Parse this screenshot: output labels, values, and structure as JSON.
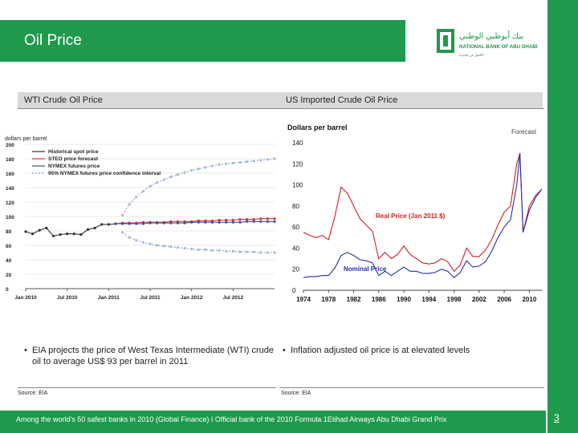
{
  "header": {
    "title": "Oil Price"
  },
  "logo": {
    "arabic": "بنك أبوظبي الوطني",
    "name": "NATIONAL BANK OF ABU DHABI",
    "tagline": "الأفضل في الخدمة"
  },
  "left_panel": {
    "title": "WTI Crude Oil Price",
    "bullet": "EIA projects the price of West Texas Intermediate (WTI) crude oil to average US$ 93 per barrel in 2011",
    "source": "Source: EIA"
  },
  "right_panel": {
    "title": "US Imported Crude Oil Price",
    "bullet": "Inflation adjusted oil price is at elevated levels",
    "source": "Source: EIA"
  },
  "footer": {
    "text": "Among the world's 50 safest banks in 2010 (Global Finance) I Official bank of the 2010 Formula 1Etihad Airways Abu Dhabi Grand Prix",
    "page": "3"
  },
  "colors": {
    "brand_green": "#1f9a4c",
    "historical": "#333333",
    "steo": "#e03030",
    "nymex": "#3a4fa8",
    "ci": "#8aa0cc"
  },
  "chart_data": [
    {
      "type": "line",
      "title": "WTI Crude Oil Price",
      "ylabel": "dollars per barrel",
      "categories": [
        "Jan 2010",
        "Jul 2010",
        "Jan 2011",
        "Jul 2011",
        "Jan 2012",
        "Jul 2012"
      ],
      "ylim": [
        0,
        200
      ],
      "yticks": [
        0,
        20,
        40,
        60,
        80,
        100,
        120,
        140,
        160,
        180,
        200
      ],
      "legend": [
        "Historical spot price",
        "STEO price forecast",
        "NYMEX futures price",
        "95% NYMEX futures price confidence interval"
      ],
      "series": [
        {
          "name": "Historical spot price",
          "x": [
            0,
            1,
            2,
            3,
            4,
            5,
            6,
            7,
            8,
            9,
            10,
            11,
            12,
            13
          ],
          "values": [
            79,
            76,
            81,
            84,
            73,
            75,
            76,
            76,
            75,
            82,
            84,
            89,
            89,
            90
          ]
        },
        {
          "name": "STEO price forecast",
          "x": [
            13,
            14,
            15,
            16,
            17,
            18,
            19,
            20,
            21,
            22,
            23,
            24,
            25,
            26,
            27,
            28,
            29,
            30,
            31,
            32,
            33,
            34,
            35,
            36
          ],
          "values": [
            90,
            91,
            91,
            91,
            92,
            92,
            92,
            92,
            93,
            93,
            93,
            93,
            94,
            94,
            94,
            95,
            95,
            95,
            96,
            96,
            96,
            97,
            97,
            97
          ]
        },
        {
          "name": "NYMEX futures price",
          "x": [
            13,
            14,
            15,
            16,
            17,
            18,
            19,
            20,
            21,
            22,
            23,
            24,
            25,
            26,
            27,
            28,
            29,
            30,
            31,
            32,
            33,
            34,
            35,
            36
          ],
          "values": [
            90,
            90,
            90,
            90,
            90,
            91,
            91,
            91,
            91,
            91,
            91,
            92,
            92,
            92,
            92,
            92,
            92,
            92,
            92,
            93,
            93,
            93,
            93,
            93
          ]
        },
        {
          "name": "95% CI upper",
          "x": [
            14,
            15,
            16,
            17,
            18,
            19,
            20,
            21,
            22,
            23,
            24,
            25,
            26,
            27,
            28,
            29,
            30,
            31,
            32,
            33,
            34,
            35,
            36
          ],
          "values": [
            102,
            117,
            127,
            135,
            142,
            147,
            151,
            155,
            158,
            161,
            164,
            166,
            168,
            170,
            172,
            173,
            174,
            175,
            176,
            177,
            178,
            179,
            180
          ]
        },
        {
          "name": "95% CI lower",
          "x": [
            14,
            15,
            16,
            17,
            18,
            19,
            20,
            21,
            22,
            23,
            24,
            25,
            26,
            27,
            28,
            29,
            30,
            31,
            32,
            33,
            34,
            35,
            36
          ],
          "values": [
            78,
            71,
            67,
            64,
            62,
            60,
            59,
            58,
            57,
            56,
            55,
            54,
            54,
            53,
            53,
            52,
            52,
            51,
            51,
            51,
            50,
            50,
            50
          ]
        }
      ]
    },
    {
      "type": "line",
      "title": "US Imported Crude Oil Price",
      "ylabel": "Dollars per barrel",
      "x_ticks": [
        "1974",
        "1978",
        "1982",
        "1986",
        "1990",
        "1994",
        "1998",
        "2002",
        "2006",
        "2010"
      ],
      "ylim": [
        0,
        140
      ],
      "yticks": [
        0,
        20,
        40,
        60,
        80,
        100,
        120,
        140
      ],
      "annotations": [
        "Forecast",
        "Real Price (Jan 2011 $)",
        "Nominal Price"
      ],
      "series": [
        {
          "name": "Real Price (Jan 2011 $)",
          "x": [
            1974,
            1975,
            1976,
            1977,
            1978,
            1979,
            1980,
            1981,
            1982,
            1983,
            1984,
            1985,
            1986,
            1987,
            1988,
            1989,
            1990,
            1991,
            1992,
            1993,
            1994,
            1995,
            1996,
            1997,
            1998,
            1999,
            2000,
            2001,
            2002,
            2003,
            2004,
            2005,
            2006,
            2007,
            2008,
            2008.5,
            2009,
            2010,
            2011,
            2012
          ],
          "values": [
            55,
            52,
            50,
            52,
            48,
            70,
            98,
            92,
            80,
            68,
            62,
            56,
            30,
            36,
            30,
            34,
            42,
            34,
            30,
            26,
            25,
            26,
            30,
            27,
            18,
            24,
            40,
            32,
            32,
            38,
            48,
            62,
            74,
            80,
            120,
            130,
            55,
            80,
            90,
            96
          ]
        },
        {
          "name": "Nominal Price",
          "x": [
            1974,
            1975,
            1976,
            1977,
            1978,
            1979,
            1980,
            1981,
            1982,
            1983,
            1984,
            1985,
            1986,
            1987,
            1988,
            1989,
            1990,
            1991,
            1992,
            1993,
            1994,
            1995,
            1996,
            1997,
            1998,
            1999,
            2000,
            2001,
            2002,
            2003,
            2004,
            2005,
            2006,
            2007,
            2008,
            2008.5,
            2009,
            2010,
            2011,
            2012
          ],
          "values": [
            12,
            13,
            13,
            14,
            14,
            21,
            33,
            36,
            33,
            29,
            28,
            26,
            14,
            18,
            14,
            18,
            22,
            18,
            18,
            16,
            16,
            17,
            20,
            18,
            12,
            17,
            28,
            22,
            23,
            27,
            37,
            50,
            60,
            67,
            100,
            130,
            55,
            76,
            88,
            96
          ]
        }
      ]
    }
  ]
}
